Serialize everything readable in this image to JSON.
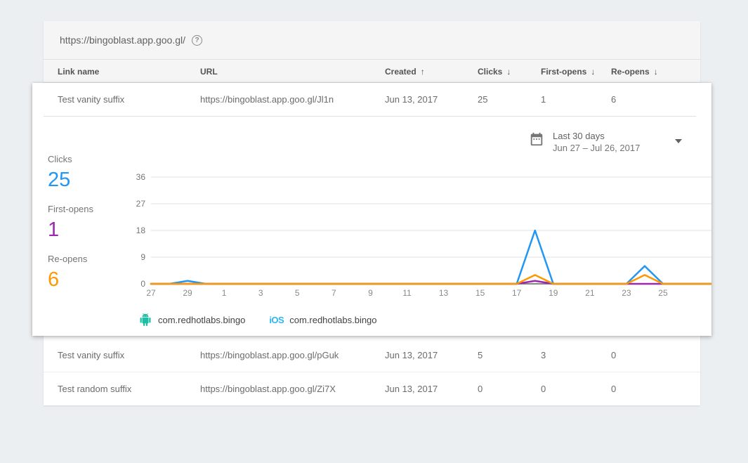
{
  "icons": {
    "help": "?",
    "sort_asc": "↑",
    "sort_desc": "↓"
  },
  "card": {
    "url_bar": {
      "url": "https://bingoblast.app.goo.gl/"
    },
    "table": {
      "columns": [
        {
          "label": "Link name"
        },
        {
          "label": "URL"
        },
        {
          "label": "Created",
          "sort": "asc"
        },
        {
          "label": "Clicks",
          "sort": "desc"
        },
        {
          "label": "First-opens",
          "sort": "desc"
        },
        {
          "label": "Re-opens",
          "sort": "desc"
        }
      ],
      "rows": [
        {
          "link_name": "Test vanity suffix",
          "url": "https://bingoblast.app.goo.gl/Jl1n",
          "created": "Jun 13, 2017",
          "clicks": "25",
          "first_opens": "1",
          "re_opens": "6",
          "expanded": true
        },
        {
          "link_name": "Test vanity suffix",
          "url": "https://bingoblast.app.goo.gl/pGuk",
          "created": "Jun 13, 2017",
          "clicks": "5",
          "first_opens": "3",
          "re_opens": "0",
          "expanded": false
        },
        {
          "link_name": "Test random suffix",
          "url": "https://bingoblast.app.goo.gl/Zi7X",
          "created": "Jun 13, 2017",
          "clicks": "0",
          "first_opens": "0",
          "re_opens": "0",
          "expanded": false
        }
      ]
    }
  },
  "panel": {
    "date_selector": {
      "preset": "Last 30 days",
      "range": "Jun 27 – Jul 26, 2017"
    },
    "stats": [
      {
        "label": "Clicks",
        "value": "25",
        "color": "#2196f3"
      },
      {
        "label": "First-opens",
        "value": "1",
        "color": "#9c27b0"
      },
      {
        "label": "Re-opens",
        "value": "6",
        "color": "#ff9800"
      }
    ],
    "legend": [
      {
        "platform": "android",
        "badge": "",
        "label": "com.redhotlabs.bingo"
      },
      {
        "platform": "ios",
        "badge": "iOS",
        "label": "com.redhotlabs.bingo"
      }
    ]
  },
  "chart_data": {
    "type": "line",
    "title": "Link performance, Jun 27 – Jul 26, 2017 (daily)",
    "x_days": 30,
    "x_tick_indexes": [
      0,
      2,
      4,
      6,
      8,
      10,
      12,
      14,
      16,
      18,
      20,
      22,
      24,
      26,
      28
    ],
    "x_tick_labels": [
      "27",
      "29",
      "1",
      "3",
      "5",
      "7",
      "9",
      "11",
      "13",
      "15",
      "17",
      "19",
      "21",
      "23",
      "25"
    ],
    "y_ticks": [
      0,
      9,
      18,
      27,
      36
    ],
    "ylim": [
      0,
      36
    ],
    "grid": true,
    "legend_position": "bottom",
    "series": [
      {
        "name": "First-opens",
        "color": "#9c27b0",
        "values": [
          0,
          0,
          0,
          0,
          0,
          0,
          0,
          0,
          0,
          0,
          0,
          0,
          0,
          0,
          0,
          0,
          0,
          0,
          0,
          0,
          0,
          1,
          0,
          0,
          0,
          0,
          0,
          0,
          0,
          0
        ]
      },
      {
        "name": "Clicks",
        "color": "#2196f3",
        "values": [
          0,
          0,
          1,
          0,
          0,
          0,
          0,
          0,
          0,
          0,
          0,
          0,
          0,
          0,
          0,
          0,
          0,
          0,
          0,
          0,
          0,
          18,
          0,
          0,
          0,
          0,
          0,
          6,
          0,
          0
        ]
      },
      {
        "name": "Re-opens",
        "color": "#ff9800",
        "values": [
          0,
          0,
          0,
          0,
          0,
          0,
          0,
          0,
          0,
          0,
          0,
          0,
          0,
          0,
          0,
          0,
          0,
          0,
          0,
          0,
          0,
          3,
          0,
          0,
          0,
          0,
          0,
          3,
          0,
          0
        ]
      }
    ]
  }
}
